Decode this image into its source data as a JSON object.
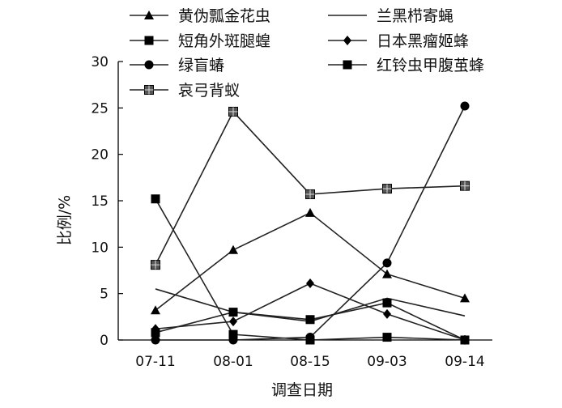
{
  "chart_data": {
    "type": "line",
    "title": "",
    "xlabel": "调查日期",
    "ylabel": "比例/%",
    "categories": [
      "07-11",
      "08-01",
      "08-15",
      "09-03",
      "09-14"
    ],
    "ylim": [
      0,
      30
    ],
    "yticks": [
      0,
      5,
      10,
      15,
      20,
      25,
      30
    ],
    "grid": false,
    "legend_position": "top",
    "series": [
      {
        "name": "黄伪瓢金花虫",
        "marker": "triangle",
        "values": [
          3.2,
          9.7,
          13.7,
          7.1,
          4.5
        ]
      },
      {
        "name": "兰黑栉寄蝇",
        "marker": "none",
        "values": [
          5.5,
          3.0,
          2.0,
          4.5,
          2.6
        ]
      },
      {
        "name": "短角外斑腿蝗",
        "marker": "square",
        "values": [
          0.8,
          3.0,
          2.2,
          4.0,
          0.0
        ]
      },
      {
        "name": "日本黑瘤姬蜂",
        "marker": "diamond",
        "values": [
          1.2,
          2.0,
          6.1,
          2.8,
          0.0
        ]
      },
      {
        "name": "绿盲蝽",
        "marker": "circle",
        "values": [
          0.0,
          0.0,
          0.3,
          8.3,
          25.2
        ]
      },
      {
        "name": "红铃虫甲腹茧蜂",
        "marker": "square",
        "values": [
          15.2,
          0.6,
          0.0,
          0.3,
          0.0
        ]
      },
      {
        "name": "哀弓背蚁",
        "marker": "square-cross",
        "values": [
          8.1,
          24.6,
          15.7,
          16.3,
          16.6
        ]
      }
    ]
  }
}
